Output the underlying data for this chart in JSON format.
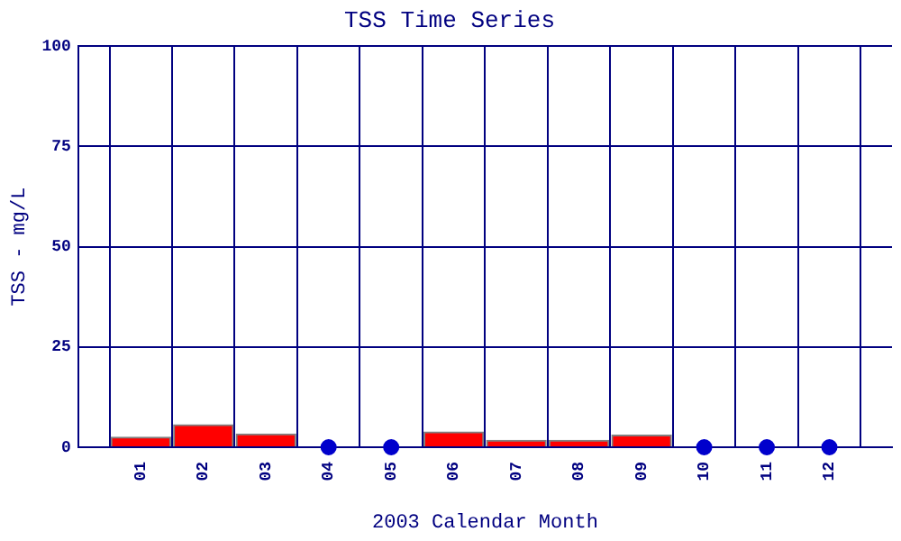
{
  "chart_data": {
    "type": "bar",
    "title": "TSS Time Series",
    "xlabel": "2003 Calendar Month",
    "ylabel": "TSS - mg/L",
    "series": [
      {
        "color": "#ff0000",
        "x": [
          1,
          2,
          3,
          6,
          7,
          8,
          9
        ],
        "values": [
          2.5,
          5.6,
          3.3,
          3.8,
          1.7,
          1.7,
          3.0
        ]
      },
      {
        "type": "scatter",
        "color": "#0000cc",
        "x": [
          4,
          5,
          10,
          11,
          12
        ],
        "values": [
          0,
          0,
          0,
          0,
          0
        ]
      }
    ],
    "xlim": [
      0,
      13
    ],
    "xticks": [
      {
        "value": 1,
        "label": "01"
      },
      {
        "value": 2,
        "label": "02"
      },
      {
        "value": 3,
        "label": "03"
      },
      {
        "value": 4,
        "label": "04"
      },
      {
        "value": 5,
        "label": "05"
      },
      {
        "value": 6,
        "label": "06"
      },
      {
        "value": 7,
        "label": "07"
      },
      {
        "value": 8,
        "label": "08"
      },
      {
        "value": 9,
        "label": "09"
      },
      {
        "value": 10,
        "label": "10"
      },
      {
        "value": 11,
        "label": "11"
      },
      {
        "value": 12,
        "label": "12"
      }
    ],
    "ylim": [
      0,
      100
    ],
    "yticks": [
      0,
      25,
      50,
      75,
      100
    ],
    "grid": true,
    "legend": false,
    "marker": "circle"
  }
}
